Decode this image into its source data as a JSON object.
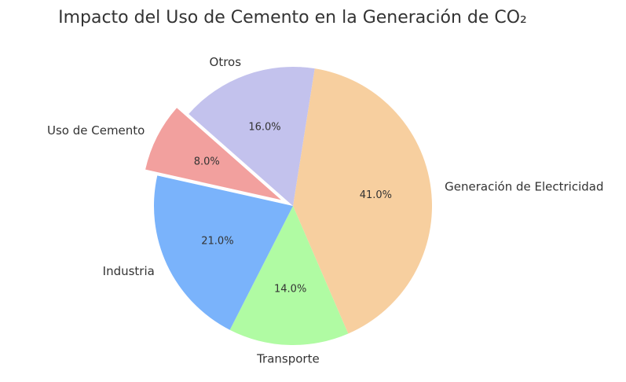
{
  "chart_data": {
    "type": "pie",
    "title": "Impacto del Uso de Cemento en la Generación de CO₂",
    "slices": [
      {
        "label": "Generación de Electricidad",
        "value": 41.0,
        "pct_label": "41.0%",
        "color": "#f7cf9f",
        "explode": false
      },
      {
        "label": "Transporte",
        "value": 14.0,
        "pct_label": "14.0%",
        "color": "#b0fba3",
        "explode": false
      },
      {
        "label": "Industria",
        "value": 21.0,
        "pct_label": "21.0%",
        "color": "#7ab3fb",
        "explode": false
      },
      {
        "label": "Uso de Cemento",
        "value": 8.0,
        "pct_label": "8.0%",
        "color": "#f2a09e",
        "explode": true
      },
      {
        "label": "Otros",
        "value": 16.0,
        "pct_label": "16.0%",
        "color": "#c3c2ed",
        "explode": false
      }
    ]
  }
}
